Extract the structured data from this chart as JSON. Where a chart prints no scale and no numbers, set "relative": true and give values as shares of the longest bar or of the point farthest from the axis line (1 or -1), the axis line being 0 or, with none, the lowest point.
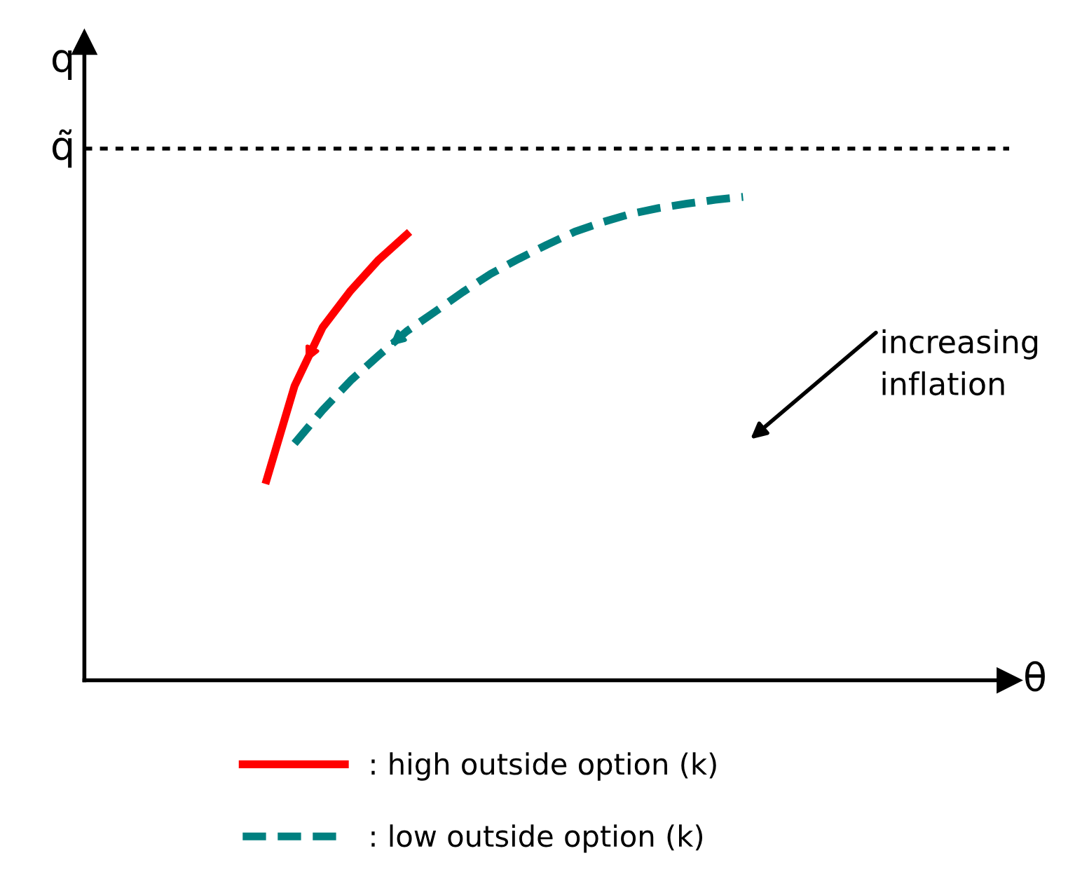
{
  "chart_data": {
    "type": "line",
    "relative": true,
    "legend": "bottom",
    "categories": [
      null,
      null,
      null,
      null,
      null,
      null,
      null,
      null,
      null,
      null,
      null,
      null,
      null,
      null,
      null,
      null,
      null,
      null
    ],
    "series": [
      {
        "name": ": high outside option (k)",
        "color": "#ff0000",
        "line_style": "solid",
        "values": [
          0.414,
          0.609,
          0.73,
          0.806,
          0.87,
          0.922,
          null,
          null,
          null,
          null,
          null,
          null,
          null,
          null,
          null,
          null,
          null,
          null
        ]
      },
      {
        "name": ": low outside option (k)",
        "color": "#008080",
        "line_style": "dashed",
        "values": [
          null,
          0.49,
          0.559,
          0.62,
          0.672,
          0.722,
          0.762,
          0.803,
          0.841,
          0.872,
          0.901,
          0.928,
          0.948,
          0.965,
          0.977,
          0.986,
          0.994,
          1.0
        ]
      }
    ],
    "ref_lines": [
      {
        "axis": "y",
        "value": 1.1,
        "label": "q̃",
        "line_style": "dotted",
        "color": "#000000"
      }
    ],
    "annotations": [
      "increasing inflation",
      "θ",
      "q"
    ]
  }
}
